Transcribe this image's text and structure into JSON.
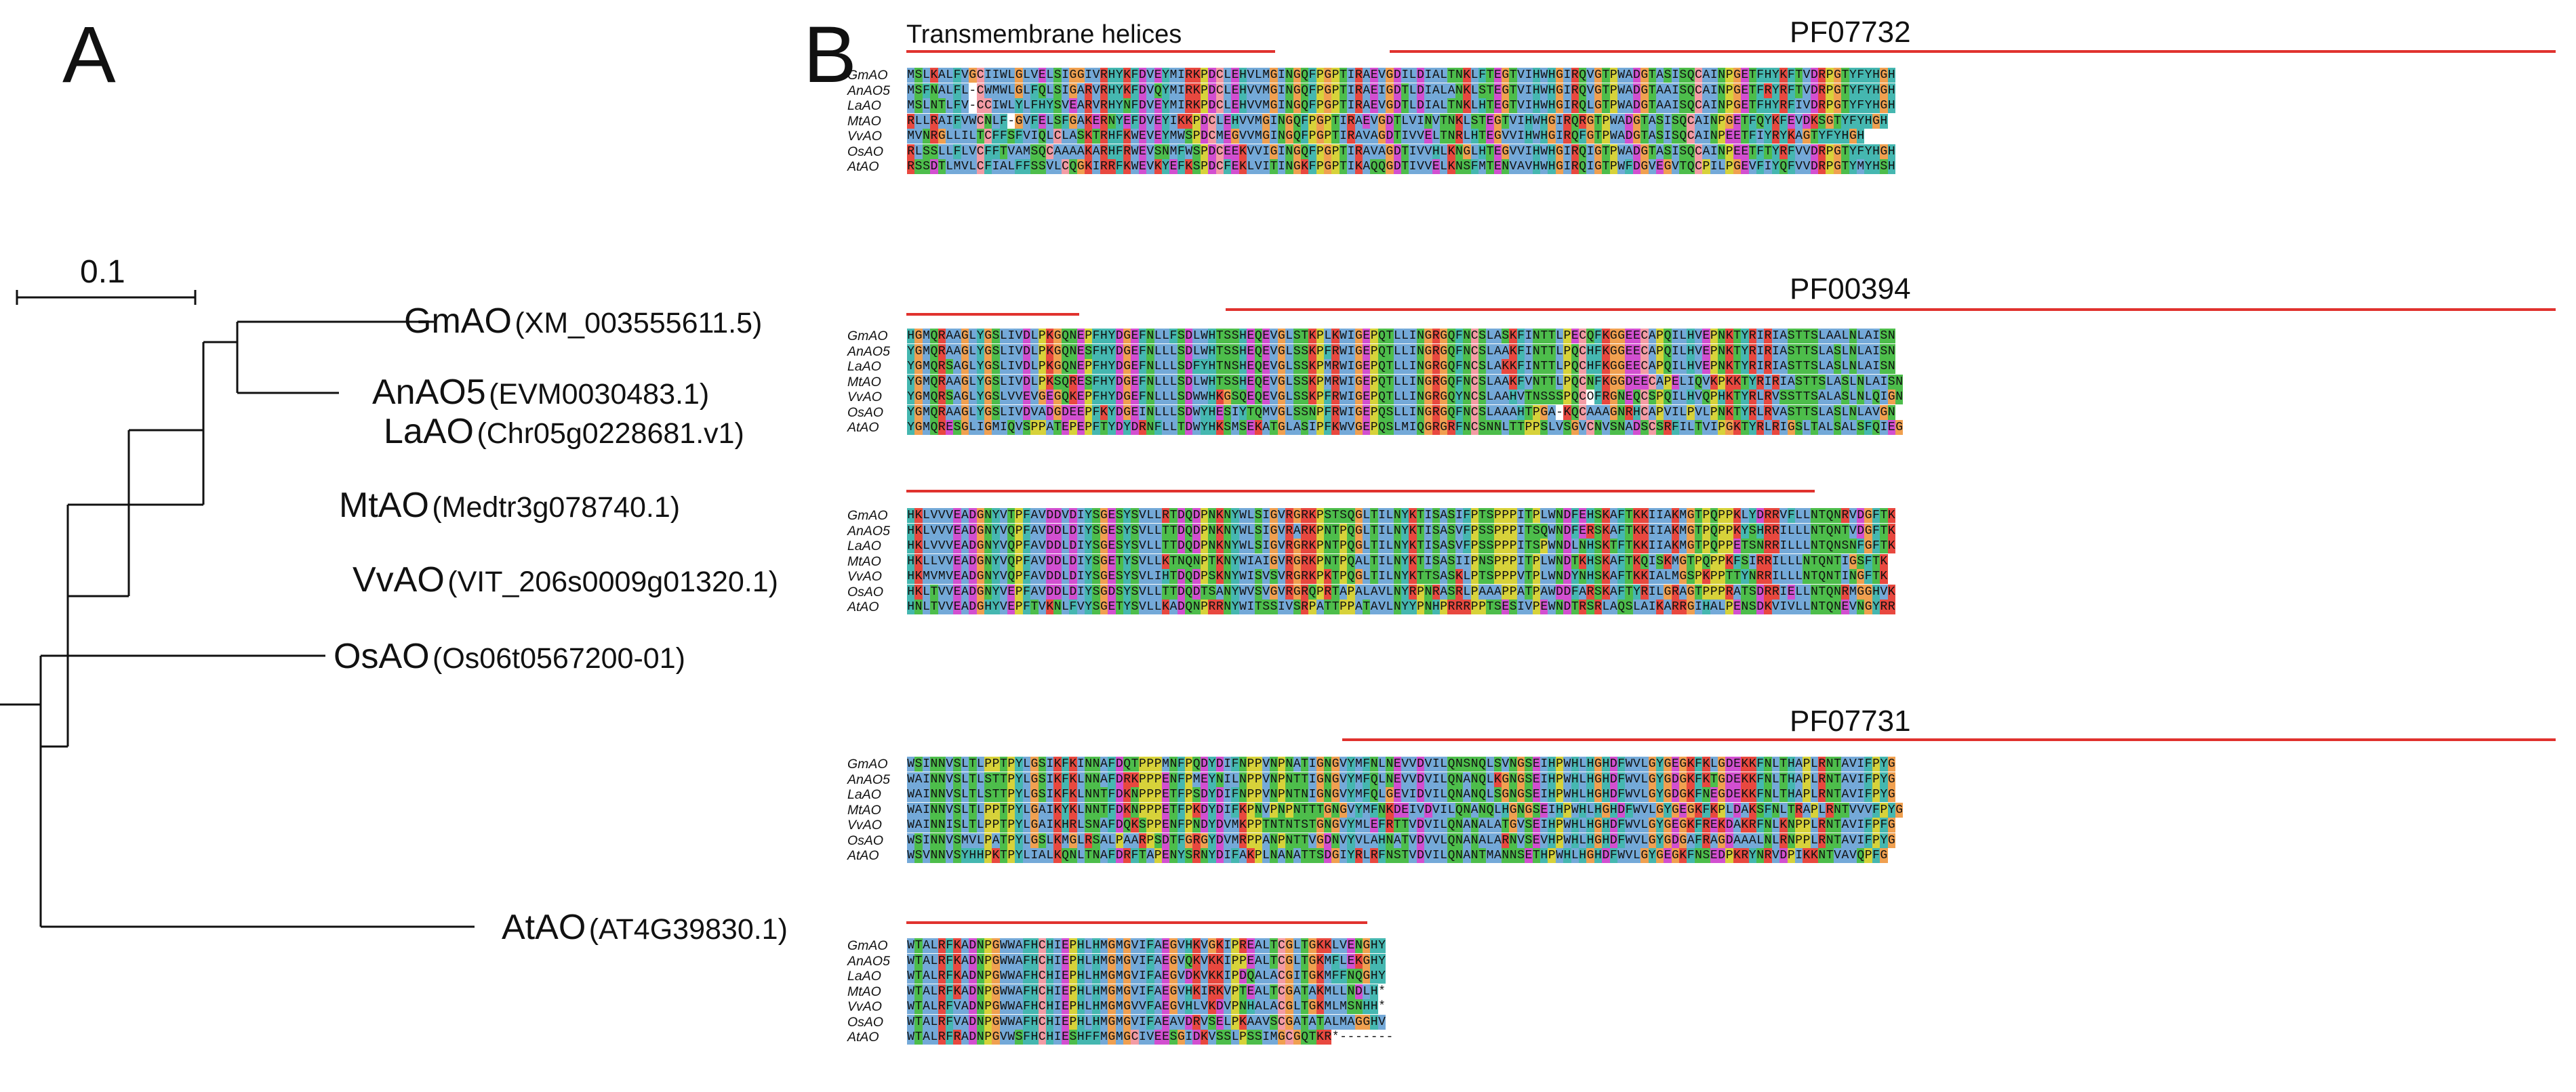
{
  "panels": {
    "a": "A",
    "b": "B"
  },
  "tree": {
    "scale_label": "0.1",
    "tips": [
      {
        "species": "GmAO",
        "accession": "(XM_003555611.5)"
      },
      {
        "species": "AnAO5",
        "accession": "(EVM0030483.1)"
      },
      {
        "species": "LaAO",
        "accession": "(Chr05g0228681.v1)"
      },
      {
        "species": "MtAO",
        "accession": "(Medtr3g078740.1)"
      },
      {
        "species": "VvAO",
        "accession": "(VIT_206s0009g01320.1)"
      },
      {
        "species": "OsAO",
        "accession": "(Os06t0567200-01)"
      },
      {
        "species": "AtAO",
        "accession": "(AT4G39830.1)"
      }
    ]
  },
  "alignment": {
    "row_labels": [
      "GmAO",
      "AnAO5",
      "LaAO",
      "MtAO",
      "VvAO",
      "OsAO",
      "AtAO"
    ],
    "blocks": [
      {
        "rows": [
          "MSLKALFVGCIIWLGLVELSIGGIVRHYKFDVEYMIRKPDCLEHVLMGINGQFPGPTIRAEVGDILDIALTNKLFTEGTVIHWHGIRQVGTPWADGTASISQCAINPGETFHYKFTVDRPGTYFYHGH",
          "MSFNALFL-CWMWLGLFQLSIGARVRHYKFDVQYMIRKPDCLEHVVMGINGQFPGPTIRAEIGDTLDIALANKLSTEGTVIHWHGIRQVGTPWADGTAAISQCAINPGETFRYRFTVDRPGTYFYHGH",
          "MSLNTLFV-CCIWLYLFHYSVEARVRHYNFDVEYMIRKPDCLEHVVMGINGQFPGPTIRAEVGDTLDIALTNKLHTEGTVIHWHGIRQLGTPWADGTAAISQCAINPGETFHYRFIVDRPGTYFYHGH",
          "RLLRAIFVWCNLF-GVFELSFGAKERNYEFDVEYIKKPDCLEHVVMGINGQFPGPTIRAEVGDTLVINVTNKLSTEGTVIHWHGIRQRGTPWADGTASISQCAINPGETFQYKFEVDKSGTYFYHGH",
          "MVNRGLLILTCFFSFVIQLCLASKTRHFKWEVEYMWSPDCMEGVVMGINGQFPGPTIRAVAGDTIVVELTNRLHTEGVVIHWHGIRQFGTPWADGTASISQCAINPEETFIYRYKAGTYFYHGH",
          "RLSSLLFLVCFFTVAMSQCAAAAKARHFRWEVSNMFWSPDCEEKVVIGINGQFPGPTIRAVAGDTIVVHLKNGLHTEGVVIHWHGIRQIGTPWADGTASISQCAINPEETFTYRFVVDRPGTYFYHGH",
          "RSSDTLMVLCFIALFFSSVLCQGKIRRFKWEVKYEFKSPDCFEKLVITINGKFPGPTIKAQQGDTIVVELKNSFMTENVAVHWHGIRQIGTPWFDGVEGVTQCPILPGEVFIYQFVVDRPGTYMYHSH"
        ],
        "domains": [
          {
            "label": "Transmembrane helices"
          },
          {
            "label": "PF07732"
          }
        ]
      },
      {
        "rows": [
          "HGMQRAAGLYGSLIVDLPKGQNEPFHYDGEFNLLFSDLWHTSSHEQEVGLSTKPLKWIGEPQTLLINGRGQFNCSLASKFINTTLPECQFKGGEECAPQILHVEPNKTYRIRIASTTSLAALNLAISN",
          "YGMQRAAGLYGSLIVDLPKGQNESFHYDGEFNLLLSDLWHTSSHEQEVGLSSKPFRWIGEPQTLLINGRGQFNCSLAAKFINTTLPQCHFKGGEECAPQILHVEPNKTYRIRIASTTSLASLNLAISN",
          "YGMQRSAGLYGSLIVDLPKGQNEPFHYDGEFNLLLSDFYHTNSHEQEVGLSSKPMRWIGEPQTLLINGRGQFNCSLAKKFINTTLPQCHFKGGEECAPQILHVEPNKTYRIRIASTTSLASLNLAISN",
          "YGMQRAAGLYGSLIVDLPKSQRESFHYDGEFNLLLSDLWHTSSHEQEVGLSSKPMRWIGEPQTLLINGRGQFNCSLAAKFVNTTLPQCNFKGGDEECAPELIQVKPKKTYRIRIASTTSLASLNLAISN",
          "YGMQRSAGLYGSLVVEVGEGQKEPFHYDGEFNLLLSDWWHKGSQEQEVGLSSKPFRWIGEPQTLLINGRGQYNCSLAAHVTNSSSPQCOFRGNEQCSPQILHVQPHKTYRLRVSSTTSALASLNLQIGN",
          "YGMQRAAGLYGSLIVDVADGDEEPFKYDGEINLLLSDWYHESIYTQMVGLSSNPFRWIGEPQSLLINGRGQFNCSLAAAHTPGA-KQCAAAGNRHCAPVILPVLPNKTYRLRVASTTSLASLNLAVGN",
          "YGMQRESGLIGMIQVSPPATEPEPFTYDYDRNFLLTDWYHKSMSEKATGLASIPFKWVGEPQSLMIQGRGRFNCSNNLTTPPSLVSGVCNVSNADSCSRFILTVIPGKTYRLRIGSLTALSALSFQIEG"
        ],
        "domains": [
          {
            "label": "PF00394"
          }
        ]
      },
      {
        "rows": [
          "HKLVVVEADGNYVTPFAVDDVDIYSGESYSVLLRTDQDPNKNYWLSIGVRGRKPSTSQGLTILNYKTISASIFPTSPPPITPLWNDFEHSKAFTKKIIAKMGTPQPPKLYDRRVFLLNTQNRVDGFTK",
          "HKLVVVEADGNYVQPFAVDDLDIYSGESYSVLLTTDQDPNKNYWLSIGVRARKPNTPQGLTILNYKTISASVFPSSPPPITSQWNDFERSKAFTKKIIAKMGTPQPPKYSHRRILLLNTQNTVDGFTK",
          "HKLVVVEADGNYVQPFAVDDLDIYSGESYSVLLTTDQDPNKNYWLSIGVRGRKPNTPQGLTILNYKTISASVFPSSPPPITSPWNDLNHSKTFTKKIIAKMGTPQPPETSNRRILLLNTQNSNFGFTK",
          "HKLLVVEADGNYVQPFAVDDLDIYSGETYSVLLKTNQNPTKNYWIAIGVRGRKPNTPQALTILNYKTISASIIPNSPPPITPLWNDTKHSKAFTKQISKMGTPQPPKFSIRRILLLNTQNTIGSFTK",
          "HKMVMVEADGNYVQPFAVDDLDIYSGESYSVLIHTDQDPSKNYWISVSVRGRKPKTPQGLTILNYKTTSASKLPTSPPPVTPLWNDYNHSKAFTKKIALMGSPKPPTTYNRRILLLNTQNTINGFTK",
          "HKLTVVEADGNYVEPFAVDDLDIYSGDSYSVLLTTDQDTSANYWVSVGVRGRQPRTAPALAVLNYRPNRASRLPAAAPPATPAWDDFARSKAFTYRILGRAGTPPPRATSDRRIELLNTQNRMGGHVK",
          "HNLTVVEADGHYVEPFTVKNLFVYSGETYSVLLKADQNPRRNYWITSSIVSRPATTPPATAVLNYYPNHPRRRPPTSESIVPEWNDTRSRLAQSLAIKARRGIHALPENSDKVIVLLNTQNEVNGYRR"
        ],
        "domains": []
      },
      {
        "rows": [
          "WSINNVSLTLPPTPYLGSIKFKINNAFDQTPPPMNFPQDYDIFNPPVNPNATIGNGVYMFNLNEVVDVILQNSNQLSVNGSEIHPWHLHGHDFWVLGYGEGKFKLGDEKKFNLTHAPLRNTAVIFPYG",
          "WAINNVSLTLSTTPYLGSIKFKLNNAFDRKPPPENFPMEYNILNPPVNPNTTIGNGVYMFQLNEVVDVILQNANQLKGNGSEIHPWHLHGHDFWVLGYGDGKFKTGDEKKFNLTHAPLRNTAVIFPYG",
          "WAINNVSLTLSTTPYLGSIKFKLNNTFDKNPPPETFPSDYDIFNPPVNPNTNIGNGVYMFQLGEVIDVILQNANQLSGNGSEIHPWHLHGHDFWVLGYGDGKFNEGDEKKFNLTHAPLRNTAVIFPYG",
          "WAINNVSLTLPPTPYLGAIKYKLNNTFDKNPPPETFPKDYDIFKPNVPNPNTTTGNGVYMFNKDEIVDVILQNANQLHGNGSEIHPWHLHGHDFWVLGYGEGKFKPLDAKSFNLTRAPLRNTVVVFPYG",
          "WAINNISLTLPPTPYLGAIKHRLSNAFDQKSPPENFPNDYDVMKPPTNTNTSTGNGVYMLEFRTTVDVILQNANALATGVSEIHPWHLHGHDFWVLGYGEGKFREKDAKRFNLKNPPLRNTAVIFPFG",
          "WSINNVSMVLPATPYLGSLKMGLRSALPAARPSDTFGRGYDVMRPPANPNTTVGDNVYVLAHNATVDVVLQNANALARNVSEVHPWHLHGHDFWVLGYGDGAFRAGDAAALNLRNPPLRNTAVIFPYG",
          "WSVNNVSYHHPKTPYLIALKQNLTNAFDRFTAPENYSRNYDIFAKPLNANATTSDGIYRLRFNSTVDVILQNANTMANNSETHPWHLHGHDFWVLGYGEGKFNSEDPKRYNRVDPIKKNTVAVQPFG"
        ],
        "domains": [
          {
            "label": "PF07731"
          }
        ]
      },
      {
        "rows": [
          "WTALRFKADNPGWWAFHCHIEPHLHMGMGVIFAEGVHKVGKIPREALTCGLTGKKLVENGHY",
          "WTALRFKADNPGWWAFHCHIEPHLHMGMGVIFAEGVQKVKKIPPEALTCGLTGKMFLEKGHY",
          "WTALRFKADNPGWWAFHCHIEPHLHMGMGVIFAEGVDKVKKIPDQALACGITGKMFFNQGHY",
          "WTALRFKADNPGWWAFHCHIEPHLHMGMGVIFAEGVHKIRKVPTEALTCGATAKMLLNDLH*",
          "WTALRFVADNPGWWAFHCHIEPHLHMGMGVVFAEGVHLVKDVPNHALACGLTGKMLMSNHH*",
          "WTALRFVADNPGWWAFHCHIEPHLHMGMGVIFAEAVDRVSELPKAAVSCGATATALMAGGHV",
          "WTALRFRADNPGVWSFHCHIESHFFMGMGCIVEESGIDKVSSLPSSIMGCGQTKR*-------"
        ],
        "domains": []
      }
    ]
  },
  "colors": {
    "hydrophobic": "#74a9d8",
    "positive": "#e8483f",
    "negative": "#d24fd0",
    "polar": "#4dbd4b",
    "glycine": "#f0a050",
    "proline": "#d7d23a",
    "aromatic": "#45b7b0",
    "cysteine": "#f39ca5",
    "domain_bar": "#e0322e"
  }
}
